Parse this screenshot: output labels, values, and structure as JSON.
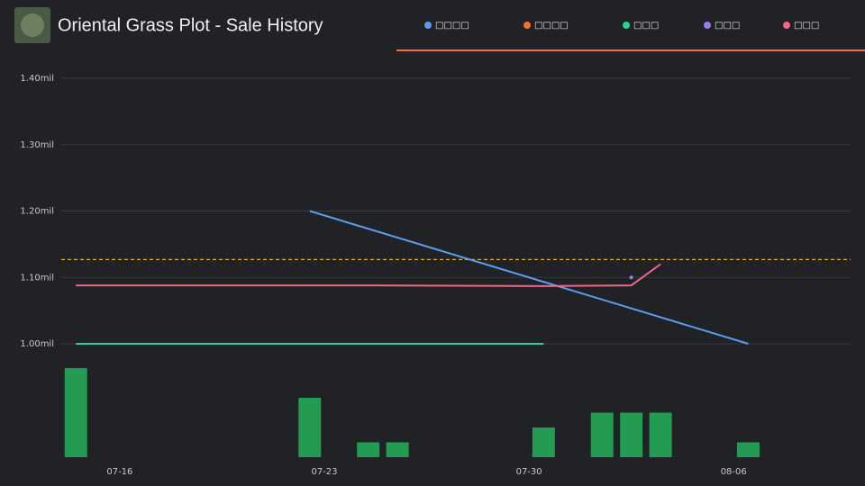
{
  "chart_data": {
    "type": "line",
    "title": "Oriental Grass Plot - Sale History",
    "series": [
      {
        "name": "□□□□",
        "color": "#5b9cf0",
        "x": [
          "07-22",
          "08-06"
        ],
        "values": [
          1.2,
          1.0
        ]
      },
      {
        "name": "□□□□",
        "color": "#f07330",
        "x": [],
        "values": []
      },
      {
        "name": "□□□",
        "color": "#2ecf93",
        "x": [
          "07-14",
          "07-22",
          "07-30"
        ],
        "values": [
          1.0,
          1.0,
          1.0
        ]
      },
      {
        "name": "□□□",
        "color": "#9a7cf0",
        "x": [
          "08-02"
        ],
        "values": [
          1.1
        ]
      },
      {
        "name": "□□□",
        "color": "#f0688a",
        "x": [
          "07-14",
          "07-24",
          "07-30",
          "08-02",
          "08-03"
        ],
        "values": [
          1.088,
          1.088,
          1.087,
          1.088,
          1.12
        ]
      }
    ],
    "reference_line": {
      "value": 1.127,
      "color": "#e0b020"
    },
    "volume": {
      "color": "#239b52",
      "x": [
        "07-14",
        "07-22",
        "07-24",
        "07-25",
        "07-30",
        "08-01",
        "08-02",
        "08-03",
        "08-06"
      ],
      "values": [
        6,
        4,
        1,
        1,
        2,
        3,
        3,
        3,
        1
      ]
    },
    "xlim": [
      "07-14",
      "08-10"
    ],
    "xticks": [
      "07-16",
      "07-23",
      "07-30",
      "08-06"
    ],
    "ylim": [
      1.0,
      1.4
    ],
    "yticks": [
      {
        "value": 1.0,
        "label": "1.00mil"
      },
      {
        "value": 1.1,
        "label": "1.10mil"
      },
      {
        "value": 1.2,
        "label": "1.20mil"
      },
      {
        "value": 1.3,
        "label": "1.30mil"
      },
      {
        "value": 1.4,
        "label": "1.40mil"
      }
    ],
    "y2lim": [
      0,
      6
    ],
    "grid": true
  }
}
